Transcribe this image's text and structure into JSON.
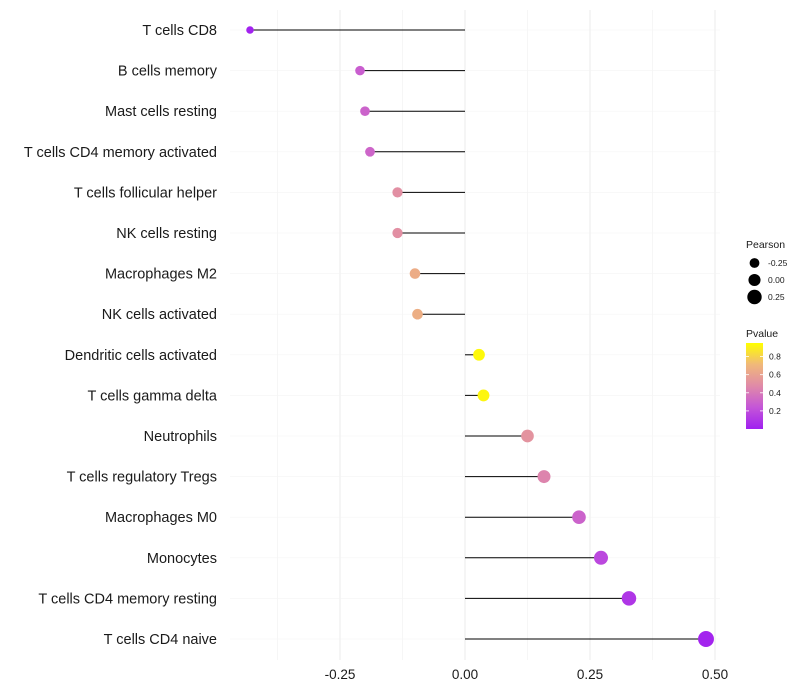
{
  "chart_data": {
    "type": "lollipop",
    "categories": [
      "T cells CD8",
      "B cells memory",
      "Mast cells resting",
      "T cells CD4 memory activated",
      "T cells follicular helper",
      "NK cells resting",
      "Macrophages M2",
      "NK cells activated",
      "Dendritic cells activated",
      "T cells gamma delta",
      "Neutrophils",
      "T cells regulatory  Tregs ",
      "Macrophages M0",
      "Monocytes",
      "T cells CD4 memory resting",
      "T cells CD4 naive"
    ],
    "values": [
      -0.43,
      -0.21,
      -0.2,
      -0.19,
      -0.135,
      -0.135,
      -0.1,
      -0.095,
      0.028,
      0.037,
      0.125,
      0.158,
      0.228,
      0.272,
      0.328,
      0.482
    ],
    "pvalues": [
      0.01,
      0.28,
      0.3,
      0.31,
      0.5,
      0.5,
      0.65,
      0.66,
      0.93,
      0.92,
      0.52,
      0.45,
      0.3,
      0.18,
      0.1,
      0.02
    ],
    "xlim": [
      -0.47,
      0.51
    ],
    "xticks": [
      -0.25,
      0,
      0.25,
      0.5
    ],
    "xtick_labels": [
      "-0.25",
      "0.00",
      "0.25",
      "0.50"
    ],
    "legend": {
      "size_title": "Pearson",
      "size_entries": [
        {
          "label": "-0.25",
          "value": -0.25
        },
        {
          "label": "0.00",
          "value": 0
        },
        {
          "label": "0.25",
          "value": 0.25
        }
      ],
      "color_title": "Pvalue",
      "color_ticks": [
        {
          "label": "0.8",
          "value": 0.8
        },
        {
          "label": "0.6",
          "value": 0.6
        },
        {
          "label": "0.4",
          "value": 0.4
        },
        {
          "label": "0.2",
          "value": 0.2
        }
      ],
      "color_range": [
        0.0,
        0.95
      ],
      "colors": [
        "#a020f0",
        "#c455d8",
        "#e08aa8",
        "#f0b87a",
        "#ffff00"
      ]
    }
  }
}
